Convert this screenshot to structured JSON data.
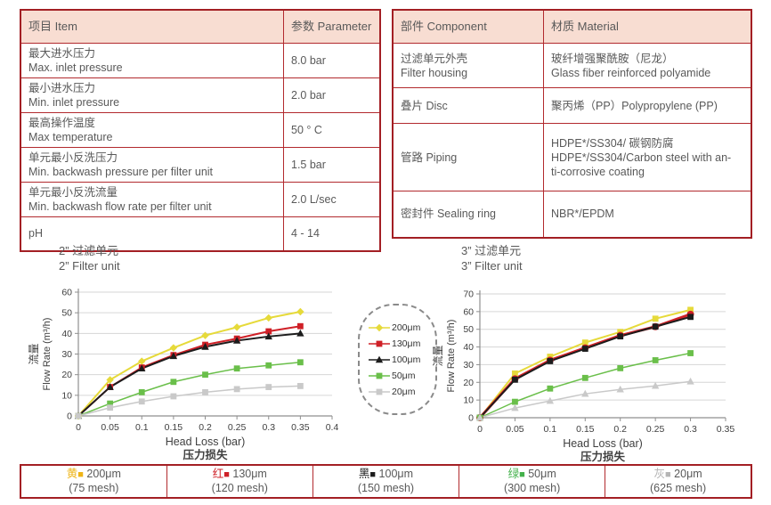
{
  "spec_table": {
    "headers": [
      "项目 Item",
      "参数 Parameter"
    ],
    "rows": [
      {
        "zh": "最大进水压力",
        "en": "Max. inlet pressure",
        "value": "8.0 bar"
      },
      {
        "zh": "最小进水压力",
        "en": "Min. inlet pressure",
        "value": "2.0 bar"
      },
      {
        "zh": "最高操作温度",
        "en": "Max temperature",
        "value": "50 ° C"
      },
      {
        "zh": "单元最小反洗压力",
        "en": "Min. backwash pressure per filter unit",
        "value": "1.5 bar"
      },
      {
        "zh": "单元最小反洗流量",
        "en": "Min. backwash flow rate per filter unit",
        "value": "2.0 L/sec"
      },
      {
        "zh": "pH",
        "en": "",
        "value": "4 - 14"
      }
    ]
  },
  "material_table": {
    "headers": [
      "部件 Component",
      "材质 Material"
    ],
    "rows": [
      {
        "component_lines": [
          "过滤单元外壳",
          "Filter housing"
        ],
        "material_lines": [
          "玻纤增强聚酰胺（尼龙）",
          "Glass fiber reinforced polyamide"
        ]
      },
      {
        "component_lines": [
          "叠片 Disc"
        ],
        "material_lines": [
          "聚丙烯（PP）Polypropylene (PP)"
        ]
      },
      {
        "component_lines": [
          "管路 Piping"
        ],
        "material_lines": [
          "HDPE*/SS304/ 碳钢防腐",
          "HDPE*/SS304/Carbon steel with an-",
          "ti-corrosive coating"
        ]
      },
      {
        "component_lines": [
          "密封件 Sealing ring"
        ],
        "material_lines": [
          "NBR*/EPDM"
        ]
      }
    ]
  },
  "chart_data": [
    {
      "type": "line",
      "title_zh": "2” 过滤单元",
      "title_en": "2” Filter unit",
      "xlabel": "Head Loss (bar)",
      "xlabel_zh": "压力损失",
      "ylabel_zh": "流量",
      "ylabel": "Flow Rate (m³/h)",
      "xlim": [
        0,
        0.4
      ],
      "ylim": [
        0,
        60
      ],
      "xticks": [
        0,
        0.05,
        0.1,
        0.15,
        0.2,
        0.25,
        0.3,
        0.35,
        0.4
      ],
      "yticks": [
        0,
        10,
        20,
        30,
        40,
        50,
        60
      ],
      "x": [
        0,
        0.05,
        0.1,
        0.15,
        0.2,
        0.25,
        0.3,
        0.35
      ],
      "series": [
        {
          "name": "200μm",
          "color": "#e6da3a",
          "marker": "diamond",
          "width": 2,
          "values": [
            0,
            17.5,
            26.5,
            33,
            39,
            43,
            47.5,
            50.5
          ]
        },
        {
          "name": "130μm",
          "color": "#cf2027",
          "marker": "square",
          "width": 2,
          "values": [
            0,
            14,
            23.5,
            29.5,
            34.5,
            37.5,
            41,
            43.5
          ]
        },
        {
          "name": "100μm",
          "color": "#1c1c1c",
          "marker": "triangle",
          "width": 2,
          "values": [
            0,
            14,
            23,
            29,
            33.5,
            36.5,
            38.5,
            40
          ]
        },
        {
          "name": "50μm",
          "color": "#6abf4a",
          "marker": "square",
          "width": 1.5,
          "values": [
            0,
            6,
            11.5,
            16.5,
            20,
            23,
            24.5,
            26
          ]
        },
        {
          "name": "20μm",
          "color": "#c9c9c9",
          "marker": "square",
          "width": 1.5,
          "values": [
            0,
            4,
            7,
            9.5,
            11.5,
            13,
            14,
            14.5
          ]
        }
      ]
    },
    {
      "type": "line",
      "title_zh": "3” 过滤单元",
      "title_en": "3” Filter unit",
      "xlabel": "Head Loss (bar)",
      "xlabel_zh": "压力损失",
      "ylabel_zh": "流量",
      "ylabel": "Flow Rate (m³/h)",
      "xlim": [
        0,
        0.35
      ],
      "ylim": [
        0,
        70
      ],
      "xticks": [
        0,
        0.05,
        0.1,
        0.15,
        0.2,
        0.25,
        0.3,
        0.35
      ],
      "yticks": [
        0,
        10,
        20,
        30,
        40,
        50,
        60,
        70
      ],
      "x": [
        0,
        0.05,
        0.1,
        0.15,
        0.2,
        0.25,
        0.3
      ],
      "series": [
        {
          "name": "200μm",
          "color": "#e6da3a",
          "marker": "square",
          "width": 2,
          "values": [
            0,
            25,
            34.5,
            42.5,
            48.5,
            56,
            61
          ]
        },
        {
          "name": "130μm",
          "color": "#cf2027",
          "marker": "circle",
          "width": 3,
          "values": [
            0,
            22,
            32.5,
            39.5,
            46.5,
            51.5,
            58.5
          ]
        },
        {
          "name": "100μm",
          "color": "#1c1c1c",
          "marker": "square",
          "width": 2,
          "values": [
            0,
            21.5,
            32,
            39,
            46,
            51.5,
            57
          ]
        },
        {
          "name": "50μm",
          "color": "#6abf4a",
          "marker": "square",
          "width": 1.5,
          "values": [
            0,
            9,
            16.5,
            22.5,
            28,
            32.5,
            36.5
          ]
        },
        {
          "name": "20μm",
          "color": "#c9c9c9",
          "marker": "triangle",
          "width": 1.5,
          "values": [
            0,
            5.5,
            9.5,
            13.5,
            16,
            18,
            20.5
          ]
        }
      ]
    }
  ],
  "bottom_legend": {
    "cells": [
      {
        "zh": "黄",
        "color": "#eeb417",
        "size": "200μm",
        "mesh": "(75 mesh)"
      },
      {
        "zh": "红",
        "color": "#cf2027",
        "size": "130μm",
        "mesh": "(120 mesh)"
      },
      {
        "zh": "黑",
        "color": "#1c1c1c",
        "size": "100μm",
        "mesh": "(150 mesh)"
      },
      {
        "zh": "绿",
        "color": "#43b14b",
        "size": "50μm",
        "mesh": "(300 mesh)"
      },
      {
        "zh": "灰",
        "color": "#b5b5b5",
        "size": "20μm",
        "mesh": "(625 mesh)"
      }
    ]
  }
}
